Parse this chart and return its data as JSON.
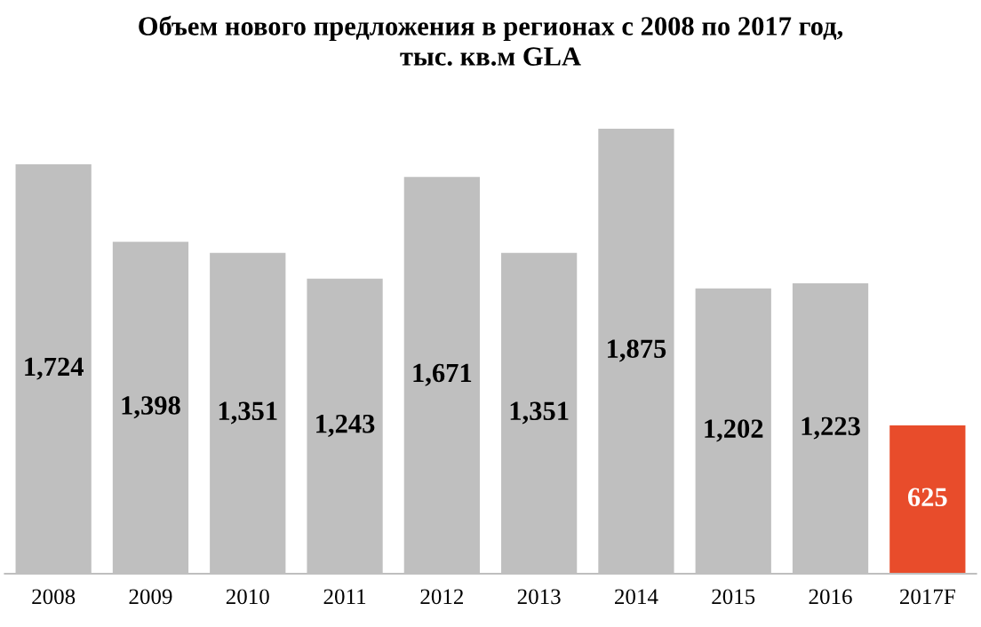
{
  "chart_data": {
    "type": "bar",
    "title": "Объем нового предложения в регионах с 2008 по 2017 год,\nтыс. кв.м GLA",
    "categories": [
      "2008",
      "2009",
      "2010",
      "2011",
      "2012",
      "2013",
      "2014",
      "2015",
      "2016",
      "2017F"
    ],
    "values": [
      1724,
      1398,
      1351,
      1243,
      1671,
      1351,
      1875,
      1202,
      1223,
      625
    ],
    "colors": [
      "#bfbfbf",
      "#bfbfbf",
      "#bfbfbf",
      "#bfbfbf",
      "#bfbfbf",
      "#bfbfbf",
      "#bfbfbf",
      "#bfbfbf",
      "#bfbfbf",
      "#e84c2b"
    ],
    "value_labels": [
      "1,724",
      "1,398",
      "1,351",
      "1,243",
      "1,671",
      "1,351",
      "1,875",
      "1,202",
      "1,223",
      "625"
    ],
    "tick_labels": "x",
    "grid": false,
    "legend": false
  }
}
